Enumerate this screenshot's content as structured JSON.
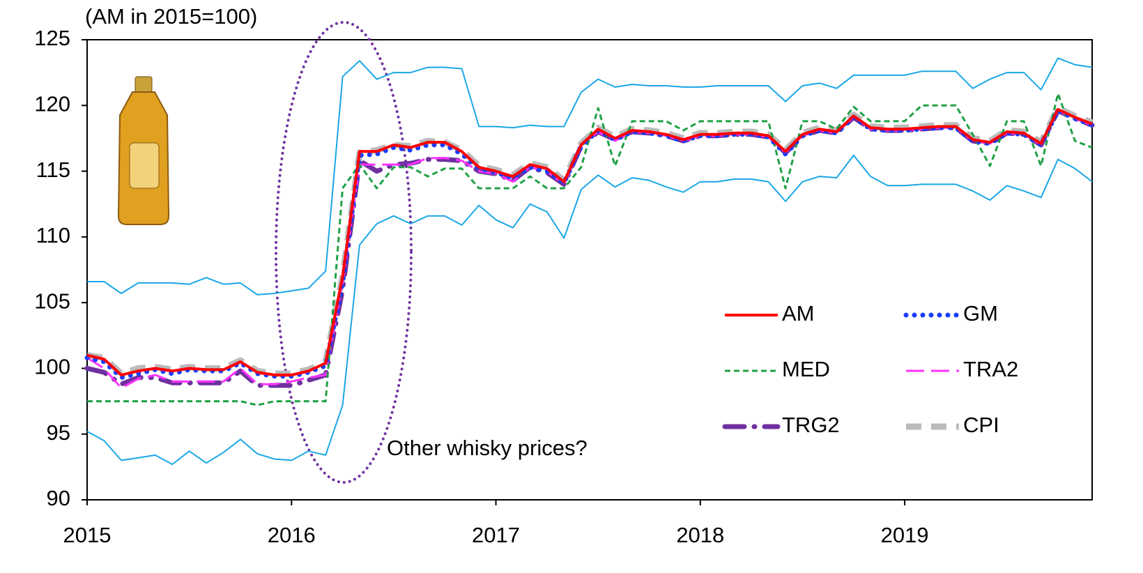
{
  "chart_data": {
    "type": "line",
    "annotations": [
      "(AM in 2015=100)",
      "Other whisky prices?"
    ],
    "x": [
      2015,
      2015.083,
      2015.167,
      2015.25,
      2015.333,
      2015.417,
      2015.5,
      2015.583,
      2015.667,
      2015.75,
      2015.833,
      2015.917,
      2016,
      2016.083,
      2016.167,
      2016.25,
      2016.333,
      2016.417,
      2016.5,
      2016.583,
      2016.667,
      2016.75,
      2016.833,
      2016.917,
      2017,
      2017.083,
      2017.167,
      2017.25,
      2017.333,
      2017.417,
      2017.5,
      2017.583,
      2017.667,
      2017.75,
      2017.833,
      2017.917,
      2018,
      2018.083,
      2018.167,
      2018.25,
      2018.333,
      2018.417,
      2018.5,
      2018.583,
      2018.667,
      2018.75,
      2018.833,
      2018.917,
      2019,
      2019.083,
      2019.167,
      2019.25,
      2019.333,
      2019.417,
      2019.5,
      2019.583,
      2019.667,
      2019.75,
      2019.833,
      2019.917
    ],
    "series": [
      {
        "name": "AM",
        "color": "#ff0000",
        "linestyle": "solid",
        "values": [
          101,
          100.7,
          99.5,
          99.8,
          100,
          99.8,
          100,
          99.9,
          99.9,
          100.5,
          99.7,
          99.5,
          99.5,
          99.8,
          100.4,
          107,
          116.5,
          116.5,
          117,
          116.8,
          117.2,
          117.2,
          116.5,
          115.3,
          115,
          114.6,
          115.5,
          115.2,
          114.2,
          117,
          118.2,
          117.5,
          118.1,
          118,
          117.8,
          117.4,
          117.8,
          117.8,
          117.9,
          117.9,
          117.7,
          116.5,
          117.8,
          118.2,
          118,
          119.2,
          118.3,
          118.2,
          118.2,
          118.3,
          118.4,
          118.4,
          117.4,
          117.2,
          118,
          117.9,
          117.1,
          119.7,
          119.1,
          118.6
        ]
      },
      {
        "name": "GM",
        "color": "#1a3cff",
        "linestyle": "dotted",
        "values": [
          100.8,
          100.5,
          99.3,
          99.6,
          99.9,
          99.6,
          99.9,
          99.8,
          99.8,
          100.4,
          99.6,
          99.4,
          99.4,
          99.7,
          100.2,
          106.5,
          116.2,
          116.3,
          116.8,
          116.6,
          117,
          117,
          116.3,
          115.2,
          114.9,
          114.5,
          115.3,
          115,
          114.1,
          116.9,
          118.1,
          117.4,
          118,
          117.9,
          117.7,
          117.3,
          117.7,
          117.7,
          117.8,
          117.8,
          117.6,
          116.3,
          117.7,
          118.1,
          117.9,
          119.1,
          118.2,
          118.1,
          118.1,
          118.2,
          118.3,
          118.3,
          117.3,
          117.1,
          117.9,
          117.8,
          117,
          119.6,
          119,
          118.5
        ]
      },
      {
        "name": "MED",
        "color": "#1fa045",
        "linestyle": "dashed",
        "values": [
          97.5,
          97.5,
          97.5,
          97.5,
          97.5,
          97.5,
          97.5,
          97.5,
          97.5,
          97.5,
          97.2,
          97.5,
          97.5,
          97.5,
          97.5,
          113.7,
          115.5,
          113.7,
          115.3,
          115.3,
          114.6,
          115.2,
          115.2,
          113.7,
          113.7,
          113.7,
          114.6,
          113.7,
          113.7,
          115.3,
          119.8,
          115.4,
          118.8,
          118.8,
          118.8,
          118.1,
          118.8,
          118.8,
          118.8,
          118.8,
          118.8,
          113.7,
          118.8,
          118.8,
          118.2,
          119.9,
          118.8,
          118.8,
          118.8,
          120,
          120,
          120,
          117.8,
          115.4,
          118.8,
          118.8,
          115.4,
          120.9,
          117.3,
          116.8
        ]
      },
      {
        "name": "TRA2",
        "color": "#ff33ff",
        "linestyle": "longdash",
        "values": [
          100.8,
          100,
          98.5,
          99.2,
          99.5,
          99,
          99,
          99,
          99,
          100,
          98.8,
          98.8,
          99,
          99.3,
          99.5,
          106.5,
          115.5,
          115.5,
          115.5,
          115.5,
          116,
          116,
          115.8,
          115,
          114.8,
          114.2,
          115.3,
          115,
          114,
          117,
          118,
          117.3,
          118,
          117.9,
          117.7,
          117.3,
          117.7,
          117.7,
          117.8,
          117.8,
          117.6,
          116.4,
          117.7,
          118.1,
          117.9,
          119.1,
          118.2,
          118.1,
          118.1,
          118.2,
          118.3,
          118.3,
          117.3,
          117.1,
          117.9,
          117.8,
          117,
          119.6,
          119,
          118.5
        ]
      },
      {
        "name": "TRG2",
        "color": "#7030a0",
        "linestyle": "dashdot",
        "values": [
          100,
          99.7,
          98.8,
          99.3,
          99.3,
          98.9,
          98.9,
          98.9,
          98.9,
          99.8,
          98.7,
          98.7,
          98.7,
          99.1,
          99.5,
          106,
          115.8,
          115,
          115.5,
          115.6,
          115.9,
          115.9,
          115.8,
          115,
          114.8,
          114.3,
          115.3,
          114.9,
          114,
          116.9,
          118,
          117.4,
          118,
          117.9,
          117.7,
          117.3,
          117.7,
          117.7,
          117.8,
          117.8,
          117.6,
          116.4,
          117.7,
          118.1,
          117.9,
          119.1,
          118.2,
          118.1,
          118.1,
          118.2,
          118.3,
          118.3,
          117.3,
          117.1,
          117.9,
          117.8,
          117,
          119.6,
          119,
          118.5
        ]
      },
      {
        "name": "CPI",
        "color": "#bbbbbb",
        "linestyle": "thickdash",
        "values": [
          101,
          100.8,
          99.6,
          100,
          100.1,
          99.9,
          100.1,
          100,
          100,
          100.6,
          99.8,
          99.6,
          99.6,
          99.9,
          100.5,
          107,
          116.4,
          116.6,
          117,
          116.9,
          117.3,
          117.2,
          116.6,
          115.4,
          115.1,
          114.7,
          115.6,
          115.3,
          114.3,
          117.1,
          118.3,
          117.6,
          118.2,
          118.1,
          117.9,
          117.5,
          117.9,
          117.9,
          118,
          118,
          117.8,
          116.6,
          117.9,
          118.3,
          118.1,
          119.3,
          118.4,
          118.3,
          118.3,
          118.4,
          118.5,
          118.5,
          117.5,
          117.3,
          118.1,
          118,
          117.2,
          119.8,
          119.2,
          118.7
        ]
      },
      {
        "color": "#1aa7e6",
        "linestyle": "thin",
        "values": [
          106.6,
          106.6,
          105.7,
          106.5,
          106.5,
          106.5,
          106.4,
          106.9,
          106.4,
          106.5,
          105.6,
          105.7,
          105.9,
          106.1,
          107.4,
          122.2,
          123.4,
          122,
          122.5,
          122.5,
          122.9,
          122.9,
          122.8,
          118.4,
          118.4,
          118.3,
          118.5,
          118.4,
          118.4,
          121,
          122,
          121.4,
          121.6,
          121.5,
          121.5,
          121.4,
          121.4,
          121.5,
          121.5,
          121.5,
          121.5,
          120.3,
          121.5,
          121.7,
          121.3,
          122.3,
          122.3,
          122.3,
          122.3,
          122.6,
          122.6,
          122.6,
          121.3,
          122,
          122.5,
          122.5,
          121.2,
          123.6,
          123.1,
          122.9
        ]
      },
      {
        "color": "#1aa7e6",
        "linestyle": "thin",
        "values": [
          95.2,
          94.5,
          93,
          93.2,
          93.4,
          92.7,
          93.7,
          92.8,
          93.6,
          94.6,
          93.5,
          93.1,
          93,
          93.7,
          93.4,
          97.2,
          109.4,
          111,
          111.6,
          111,
          111.6,
          111.6,
          110.9,
          112.4,
          111.3,
          110.7,
          112.5,
          111.9,
          109.9,
          113.6,
          114.7,
          113.8,
          114.5,
          114.3,
          113.8,
          113.4,
          114.2,
          114.2,
          114.4,
          114.4,
          114.2,
          112.7,
          114.2,
          114.6,
          114.5,
          116.2,
          114.6,
          113.9,
          113.9,
          114,
          114,
          114,
          113.5,
          112.8,
          113.9,
          113.5,
          113,
          115.9,
          115.2,
          114.2
        ]
      }
    ],
    "xlim": [
      2015,
      2019.917
    ],
    "xticks": [
      2015,
      2016,
      2017,
      2018,
      2019
    ],
    "ylim": [
      90,
      125
    ],
    "yticks": [
      90,
      95,
      100,
      105,
      110,
      115,
      120,
      125
    ],
    "grid": false,
    "legend": "lower right"
  }
}
